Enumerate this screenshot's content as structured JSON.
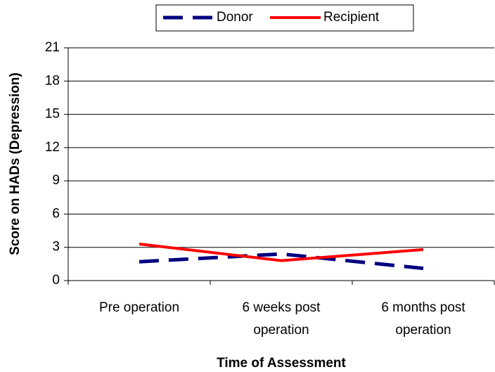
{
  "chart_data": {
    "type": "line",
    "categories": [
      "Pre operation",
      "6 weeks post operation",
      "6 months post operation"
    ],
    "series": [
      {
        "name": "Donor",
        "color": "#000080",
        "dashed": true,
        "values": [
          1.7,
          2.4,
          1.1
        ]
      },
      {
        "name": "Recipient",
        "color": "#ff0000",
        "dashed": false,
        "values": [
          3.3,
          1.8,
          2.8
        ]
      }
    ],
    "ylim": [
      0,
      21
    ],
    "yticks": [
      0,
      3,
      6,
      9,
      12,
      15,
      18,
      21
    ],
    "grid": true,
    "x_label": "Time of Assessment",
    "y_label": "Score on HADs (Depression)",
    "legend": "top"
  }
}
